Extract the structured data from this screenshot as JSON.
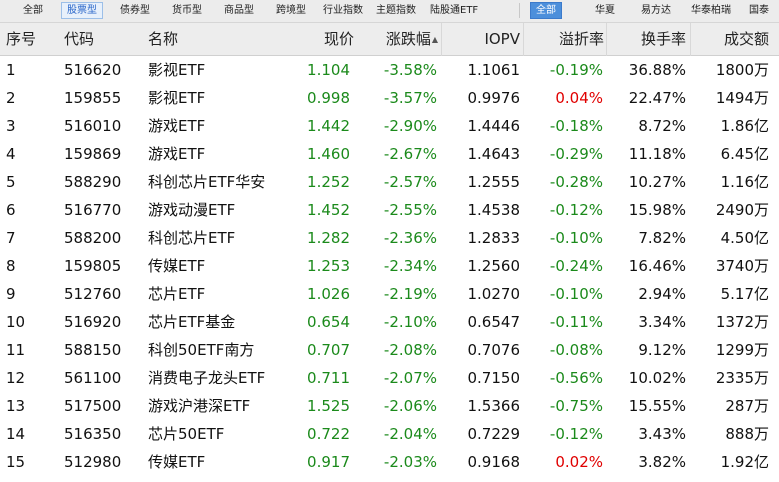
{
  "tabs_left": [
    "全部",
    "股票型",
    "债券型",
    "货币型",
    "商品型",
    "跨境型",
    "行业指数",
    "主题指数",
    "陆股通ETF"
  ],
  "tabs_right": [
    "全部",
    "华夏",
    "易方达",
    "华泰柏瑞",
    "国泰"
  ],
  "columns": {
    "seq": "序号",
    "code": "代码",
    "name": "名称",
    "price": "现价",
    "change": "涨跌幅",
    "iopv": "IOPV",
    "premium": "溢折率",
    "turnover": "换手率",
    "volume": "成交额"
  },
  "sort_indicator": "▲",
  "colors": {
    "up": "#e00000",
    "down": "#1b8a1b",
    "active_tab": "#4c8fdb"
  },
  "rows": [
    {
      "seq": "1",
      "code": "516620",
      "name": "影视ETF",
      "price": "1.104",
      "change": "-3.58%",
      "iopv": "1.1061",
      "premium": "-0.19%",
      "turnover": "36.88%",
      "volume": "1800万"
    },
    {
      "seq": "2",
      "code": "159855",
      "name": "影视ETF",
      "price": "0.998",
      "change": "-3.57%",
      "iopv": "0.9976",
      "premium": "0.04%",
      "turnover": "22.47%",
      "volume": "1494万"
    },
    {
      "seq": "3",
      "code": "516010",
      "name": "游戏ETF",
      "price": "1.442",
      "change": "-2.90%",
      "iopv": "1.4446",
      "premium": "-0.18%",
      "turnover": "8.72%",
      "volume": "1.86亿"
    },
    {
      "seq": "4",
      "code": "159869",
      "name": "游戏ETF",
      "price": "1.460",
      "change": "-2.67%",
      "iopv": "1.4643",
      "premium": "-0.29%",
      "turnover": "11.18%",
      "volume": "6.45亿"
    },
    {
      "seq": "5",
      "code": "588290",
      "name": "科创芯片ETF华安",
      "price": "1.252",
      "change": "-2.57%",
      "iopv": "1.2555",
      "premium": "-0.28%",
      "turnover": "10.27%",
      "volume": "1.16亿"
    },
    {
      "seq": "6",
      "code": "516770",
      "name": "游戏动漫ETF",
      "price": "1.452",
      "change": "-2.55%",
      "iopv": "1.4538",
      "premium": "-0.12%",
      "turnover": "15.98%",
      "volume": "2490万"
    },
    {
      "seq": "7",
      "code": "588200",
      "name": "科创芯片ETF",
      "price": "1.282",
      "change": "-2.36%",
      "iopv": "1.2833",
      "premium": "-0.10%",
      "turnover": "7.82%",
      "volume": "4.50亿"
    },
    {
      "seq": "8",
      "code": "159805",
      "name": "传媒ETF",
      "price": "1.253",
      "change": "-2.34%",
      "iopv": "1.2560",
      "premium": "-0.24%",
      "turnover": "16.46%",
      "volume": "3740万"
    },
    {
      "seq": "9",
      "code": "512760",
      "name": "芯片ETF",
      "price": "1.026",
      "change": "-2.19%",
      "iopv": "1.0270",
      "premium": "-0.10%",
      "turnover": "2.94%",
      "volume": "5.17亿"
    },
    {
      "seq": "10",
      "code": "516920",
      "name": "芯片ETF基金",
      "price": "0.654",
      "change": "-2.10%",
      "iopv": "0.6547",
      "premium": "-0.11%",
      "turnover": "3.34%",
      "volume": "1372万"
    },
    {
      "seq": "11",
      "code": "588150",
      "name": "科创50ETF南方",
      "price": "0.707",
      "change": "-2.08%",
      "iopv": "0.7076",
      "premium": "-0.08%",
      "turnover": "9.12%",
      "volume": "1299万"
    },
    {
      "seq": "12",
      "code": "561100",
      "name": "消费电子龙头ETF",
      "price": "0.711",
      "change": "-2.07%",
      "iopv": "0.7150",
      "premium": "-0.56%",
      "turnover": "10.02%",
      "volume": "2335万"
    },
    {
      "seq": "13",
      "code": "517500",
      "name": "游戏沪港深ETF",
      "price": "1.525",
      "change": "-2.06%",
      "iopv": "1.5366",
      "premium": "-0.75%",
      "turnover": "15.55%",
      "volume": "287万"
    },
    {
      "seq": "14",
      "code": "516350",
      "name": "芯片50ETF",
      "price": "0.722",
      "change": "-2.04%",
      "iopv": "0.7229",
      "premium": "-0.12%",
      "turnover": "3.43%",
      "volume": "888万"
    },
    {
      "seq": "15",
      "code": "512980",
      "name": "传媒ETF",
      "price": "0.917",
      "change": "-2.03%",
      "iopv": "0.9168",
      "premium": "0.02%",
      "turnover": "3.82%",
      "volume": "1.92亿"
    }
  ]
}
